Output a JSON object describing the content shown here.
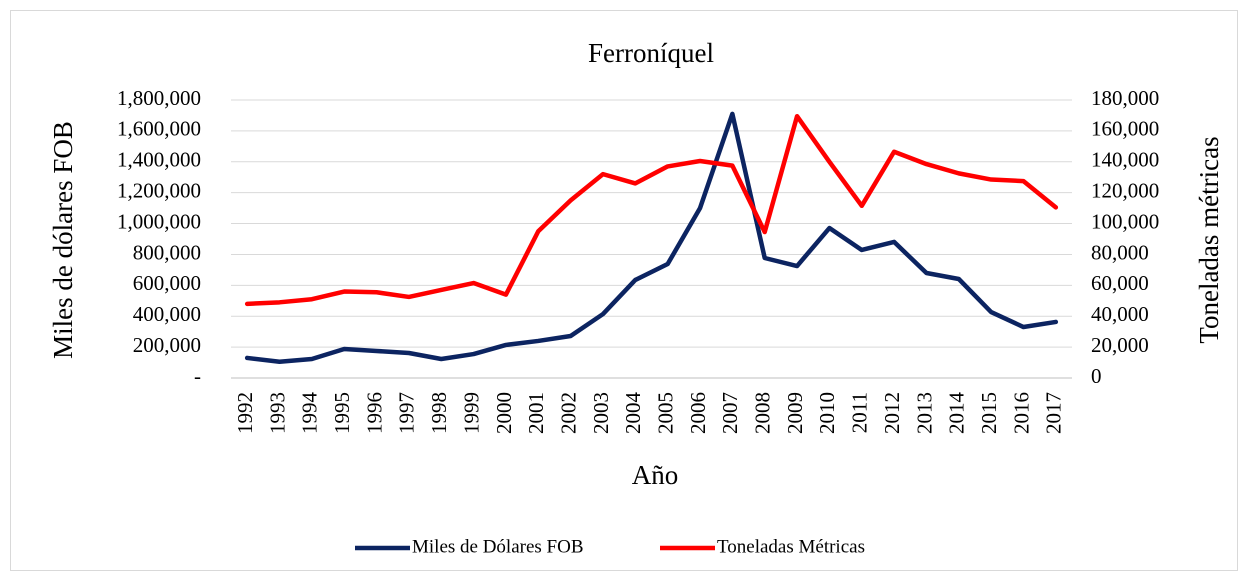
{
  "chart_data": {
    "type": "line",
    "title": "Ferroníquel",
    "x_label": "Año",
    "y_label": "Miles de dólares FOB",
    "y2_label": "Toneladas métricas",
    "categories": [
      "1992",
      "1993",
      "1994",
      "1995",
      "1996",
      "1997",
      "1998",
      "1999",
      "2000",
      "2001",
      "2002",
      "2003",
      "2004",
      "2005",
      "2006",
      "2007",
      "2008",
      "2009",
      "2010",
      "2011",
      "2012",
      "2013",
      "2014",
      "2015",
      "2016",
      "2017"
    ],
    "series": [
      {
        "name": "Miles de Dólares FOB",
        "color": "#0c2461",
        "values": [
          130000,
          105000,
          123000,
          188000,
          175000,
          162000,
          123000,
          155000,
          214000,
          240000,
          272000,
          414000,
          635000,
          738000,
          1100000,
          1710000,
          777000,
          725000,
          971000,
          829000,
          881000,
          680000,
          641000,
          427000,
          330000,
          363000
        ]
      },
      {
        "name": "Toneladas Métricas",
        "color": "#ff0000",
        "axis": "y2",
        "values": [
          48000,
          49000,
          51000,
          56000,
          55500,
          52500,
          57000,
          61500,
          54000,
          95000,
          115000,
          132000,
          126000,
          137000,
          140500,
          137500,
          94500,
          169500,
          140000,
          111500,
          146500,
          138500,
          132500,
          128500,
          127500,
          110500
        ]
      }
    ],
    "ylim": [
      0,
      1800000
    ],
    "yticks": [
      {
        "value": 0,
        "label": "-"
      },
      {
        "value": 200000,
        "label": "200,000"
      },
      {
        "value": 400000,
        "label": "400,000"
      },
      {
        "value": 600000,
        "label": "600,000"
      },
      {
        "value": 800000,
        "label": "800,000"
      },
      {
        "value": 1000000,
        "label": "1,000,000"
      },
      {
        "value": 1200000,
        "label": "1,200,000"
      },
      {
        "value": 1400000,
        "label": "1,400,000"
      },
      {
        "value": 1600000,
        "label": "1,600,000"
      },
      {
        "value": 1800000,
        "label": "1,800,000"
      }
    ],
    "y2lim": [
      0,
      180000
    ],
    "y2ticks": [
      0,
      {
        "value": 20000,
        "label": "20,000"
      },
      {
        "value": 40000,
        "label": "40,000"
      },
      {
        "value": 60000,
        "label": "60,000"
      },
      {
        "value": 80000,
        "label": "80,000"
      },
      {
        "value": 100000,
        "label": "100,000"
      },
      {
        "value": 120000,
        "label": "120,000"
      },
      {
        "value": 140000,
        "label": "140,000"
      },
      {
        "value": 160000,
        "label": "160,000"
      },
      {
        "value": 180000,
        "label": "180,000"
      }
    ],
    "grid": true,
    "legend": "bottom"
  }
}
